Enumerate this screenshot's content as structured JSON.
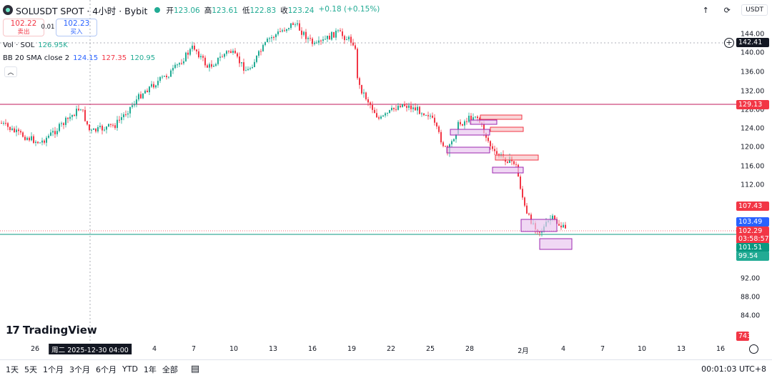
{
  "header": {
    "symbol_title": "SOLUSDT SPOT · 4小时 · Bybit",
    "ohlc": [
      {
        "k": "开",
        "v": "123.06"
      },
      {
        "k": "高",
        "v": "123.61"
      },
      {
        "k": "低",
        "v": "122.83"
      },
      {
        "k": "收",
        "v": "123.24"
      },
      {
        "k": "",
        "v": "+0.18 (+0.15%)"
      }
    ],
    "currency": "USDT"
  },
  "trade": {
    "sell_price": "102.22",
    "sell_label": "卖出",
    "spread": "0.01",
    "buy_price": "102.23",
    "buy_label": "买入"
  },
  "indicators": {
    "volume": {
      "name": "Vol · SOL",
      "value": "126.95K"
    },
    "bb": {
      "name": "BB 20 SMA close 2",
      "basis": "124.15",
      "upper": "127.35",
      "lower": "120.95"
    }
  },
  "price_axis": {
    "ticks": [
      "144.00",
      "140.00",
      "136.00",
      "132.00",
      "128.00",
      "124.00",
      "120.00",
      "116.00",
      "112.00",
      "92.00",
      "88.00",
      "84.00"
    ],
    "labels": {
      "crosshair": "142.41",
      "level_red": "129.13",
      "level_b": "107.43",
      "blue": "103.49",
      "last_price": "102.29",
      "countdown": "03:58:57",
      "green_level": "101.51",
      "teal_level": "99.54",
      "bottom_label": "743"
    }
  },
  "time_axis": {
    "ticks": [
      "26",
      "4",
      "7",
      "10",
      "13",
      "16",
      "19",
      "22",
      "25",
      "28",
      "2月",
      "4",
      "7",
      "10",
      "13",
      "16"
    ],
    "crosshair_label": "周二 2025-12-30  04:00"
  },
  "bottom_bar": {
    "ranges": [
      "1天",
      "5天",
      "1个月",
      "3个月",
      "6个月",
      "YTD",
      "1年",
      "全部"
    ],
    "clock": "00:01:03 UTC+8"
  },
  "brand": {
    "name": "TradingView",
    "mark": "17"
  },
  "colors": {
    "up": "#22ab94",
    "down": "#f23645",
    "blue": "#2962ff",
    "green_line": "#089981"
  },
  "icons": [
    "up-arrow-icon",
    "restore-icon",
    "calendar-icon",
    "settings-icon",
    "plus-icon",
    "collapse-icon"
  ]
}
